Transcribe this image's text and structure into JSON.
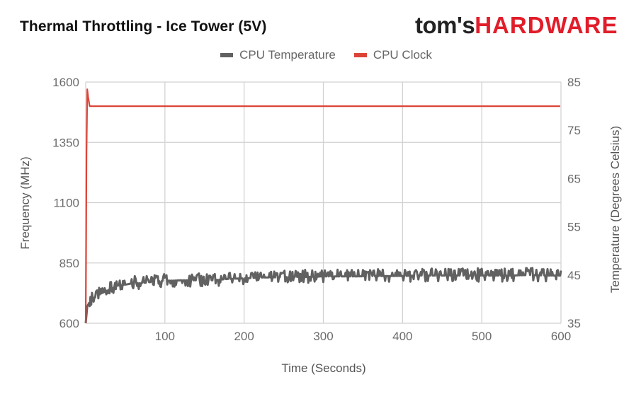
{
  "header": {
    "title": "Thermal Throttling - Ice Tower (5V)",
    "logo_part1": "tom's",
    "logo_part2": "HARDWARE"
  },
  "legend": [
    {
      "label": "CPU Temperature",
      "color": "#616161"
    },
    {
      "label": "CPU Clock",
      "color": "#db4437"
    }
  ],
  "colors": {
    "temperature": "#616161",
    "clock": "#db4437",
    "grid": "#d0d0d0",
    "tick_text": "#6b6b6b",
    "logo_red": "#e11d2a"
  },
  "chart_data": {
    "type": "line",
    "title": "Thermal Throttling - Ice Tower (5V)",
    "xlabel": "Time (Seconds)",
    "ylabel_left": "Frequency (MHz)",
    "ylabel_right": "Temperature (Degrees Celsius)",
    "xlim": [
      0,
      600
    ],
    "ylim_left": [
      600,
      1600
    ],
    "ylim_right": [
      35,
      85
    ],
    "x_ticks": [
      100,
      200,
      300,
      400,
      500,
      600
    ],
    "y_ticks_left": [
      600,
      850,
      1100,
      1350,
      1600
    ],
    "y_ticks_right": [
      35,
      45,
      55,
      65,
      75,
      85
    ],
    "grid": true,
    "legend_position": "top",
    "series": [
      {
        "name": "CPU Clock",
        "axis": "left",
        "color": "#db4437",
        "x": [
          0,
          1,
          2,
          3,
          5,
          10,
          50,
          100,
          200,
          300,
          400,
          500,
          600
        ],
        "values": [
          600,
          1300,
          1570,
          1540,
          1500,
          1500,
          1500,
          1500,
          1500,
          1500,
          1500,
          1500,
          1500
        ]
      },
      {
        "name": "CPU Temperature",
        "axis": "right",
        "color": "#616161",
        "x": [
          0,
          2,
          5,
          10,
          20,
          30,
          40,
          50,
          60,
          70,
          80,
          90,
          100,
          120,
          140,
          160,
          180,
          200,
          220,
          240,
          260,
          280,
          300,
          320,
          340,
          360,
          380,
          400,
          420,
          440,
          460,
          480,
          500,
          520,
          540,
          560,
          580,
          600
        ],
        "values": [
          35,
          38.5,
          39.5,
          40.2,
          41.2,
          42.0,
          42.8,
          43.0,
          43.3,
          43.3,
          43.5,
          43.7,
          43.8,
          43.9,
          43.9,
          43.9,
          44.2,
          44.3,
          44.5,
          44.5,
          44.6,
          44.6,
          44.7,
          44.7,
          44.7,
          44.8,
          44.8,
          44.8,
          44.9,
          44.9,
          44.9,
          44.9,
          44.9,
          44.9,
          44.9,
          45.0,
          44.9,
          44.9
        ]
      }
    ]
  }
}
